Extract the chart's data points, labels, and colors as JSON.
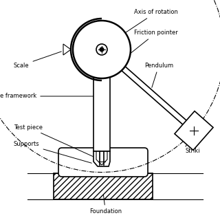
{
  "bg_color": "#ffffff",
  "line_color": "#000000",
  "labels": {
    "axis_of_rotation": "Axis of rotation",
    "friction_pointer": "Friction pointer",
    "pendulum": "Pendulum",
    "scale": "Scale",
    "framework": "e framework",
    "test_piece": "Test piece",
    "supports": "Supports",
    "striking": "Striki",
    "foundation": "Foundation"
  },
  "figsize": [
    3.2,
    3.2
  ],
  "dpi": 100
}
